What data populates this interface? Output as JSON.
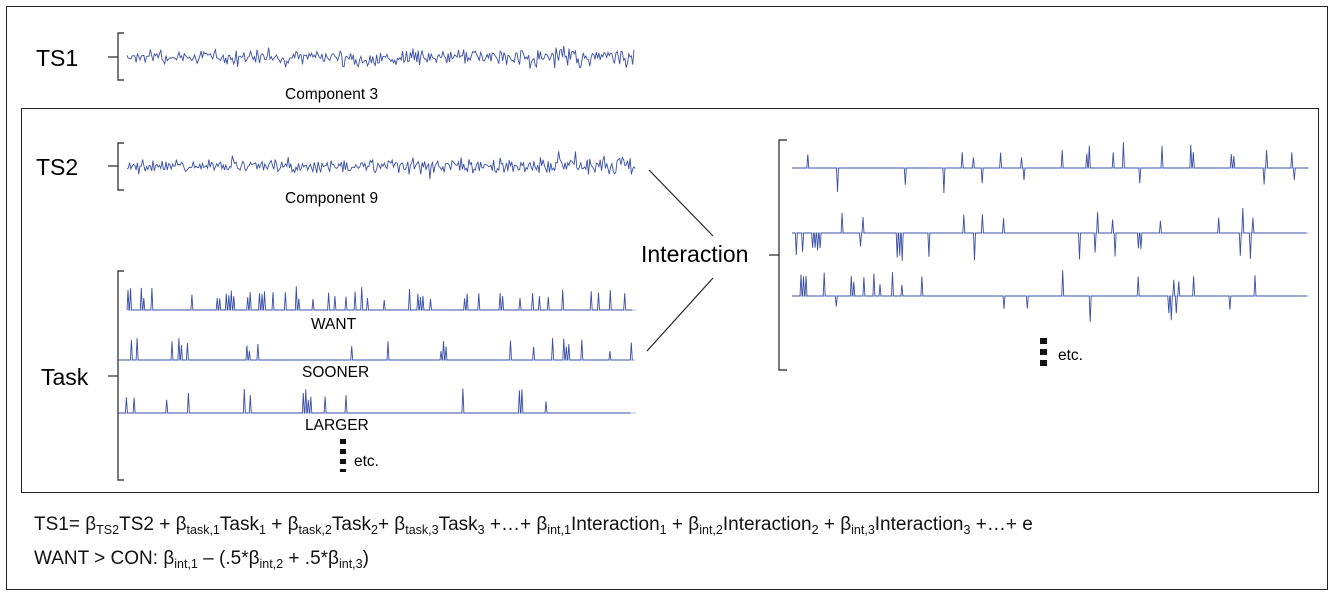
{
  "labels": {
    "ts1": "TS1",
    "ts2": "TS2",
    "task": "Task",
    "interaction": "Interaction",
    "component3": "Component 3",
    "component9": "Component 9",
    "want": "WANT",
    "sooner": "SOONER",
    "larger": "LARGER",
    "etc_task": "etc.",
    "etc_interaction": "etc."
  },
  "equations": {
    "line1": {
      "p1": "TS1= β",
      "s1": "TS2",
      "p2": "TS2 + β",
      "s2": "task,1",
      "p3": "Task",
      "s3": "1",
      "p4": " + β",
      "s4": "task,2",
      "p5": "Task",
      "s5": "2",
      "p6": "+ β",
      "s6": "task,3",
      "p7": "Task",
      "s7": "3",
      "p8": " +…+ β",
      "s8": "int,1",
      "p9": "Interaction",
      "s9": "1",
      "p10": " + β",
      "s10": "int,2",
      "p11": "Interaction",
      "s11": "2",
      "p12": " + β",
      "s12": "int,3",
      "p13": "Interaction",
      "s13": "3",
      "p14": " +…+ e"
    },
    "line2": {
      "p1": "WANT > CON: β",
      "s1": "int,1",
      "p2": " – (.5*β",
      "s2": "int,2",
      "p3": " + .5*β",
      "s3": "int,3",
      "p4": ")"
    }
  },
  "colors": {
    "signal": "#3a4fa8",
    "baseline": "#b9c2dc",
    "frame": "#222222"
  }
}
